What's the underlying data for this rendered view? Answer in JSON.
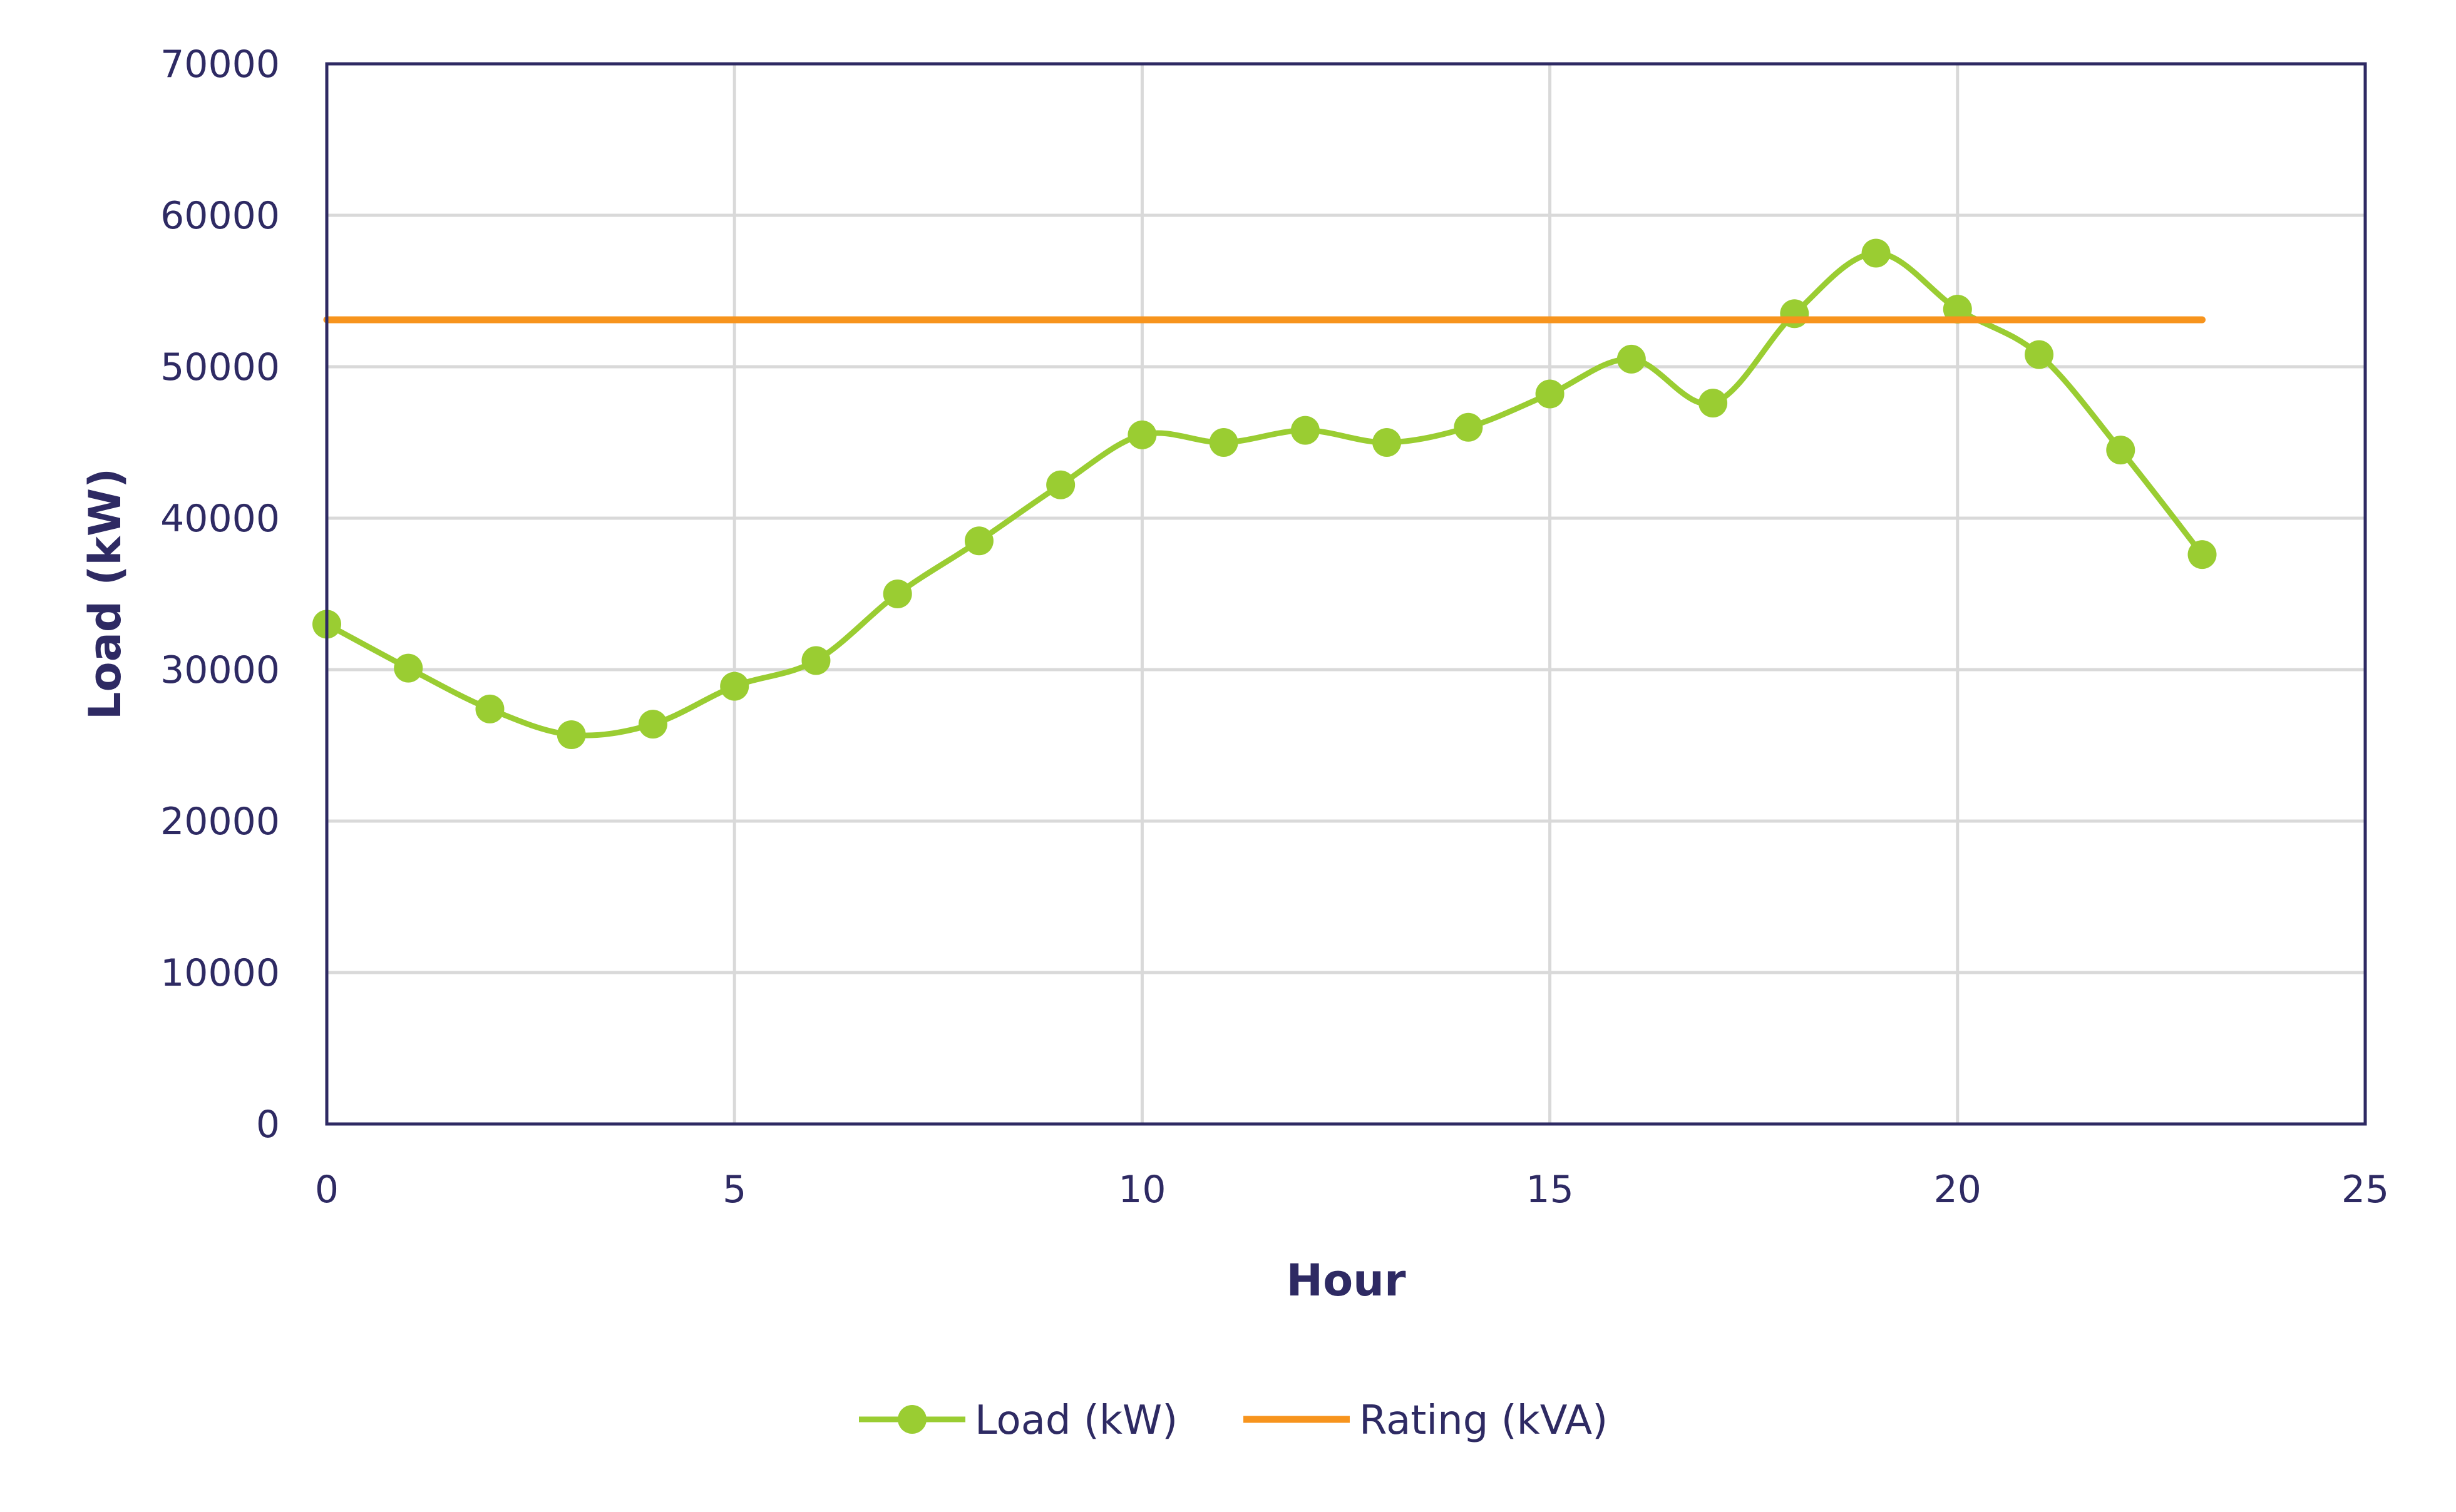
{
  "chart_data": {
    "type": "line",
    "xlabel": "Hour",
    "ylabel": "Load (kW)",
    "xlim": [
      0,
      25
    ],
    "ylim": [
      0,
      70000
    ],
    "x_ticks": [
      0,
      5,
      10,
      15,
      20,
      25
    ],
    "y_ticks": [
      0,
      10000,
      20000,
      30000,
      40000,
      50000,
      60000,
      70000
    ],
    "grid": true,
    "legend_position": "bottom",
    "series": [
      {
        "name": "Load (kW)",
        "color": "#9acd32",
        "marker": "circle",
        "smooth": true,
        "x": [
          0,
          1,
          2,
          3,
          4,
          5,
          6,
          7,
          8,
          9,
          10,
          11,
          12,
          13,
          14,
          15,
          16,
          17,
          18,
          19,
          20,
          21,
          22,
          23
        ],
        "values": [
          33000,
          30100,
          27400,
          25700,
          26400,
          28900,
          30600,
          35000,
          38500,
          42200,
          45500,
          45000,
          45800,
          45000,
          46000,
          48200,
          50500,
          47600,
          53500,
          57500,
          53800,
          50800,
          44500,
          37600
        ]
      },
      {
        "name": "Rating (kVA)",
        "color": "#f7941d",
        "marker": "none",
        "x": [
          0,
          23
        ],
        "values": [
          53100,
          53100
        ]
      }
    ]
  }
}
